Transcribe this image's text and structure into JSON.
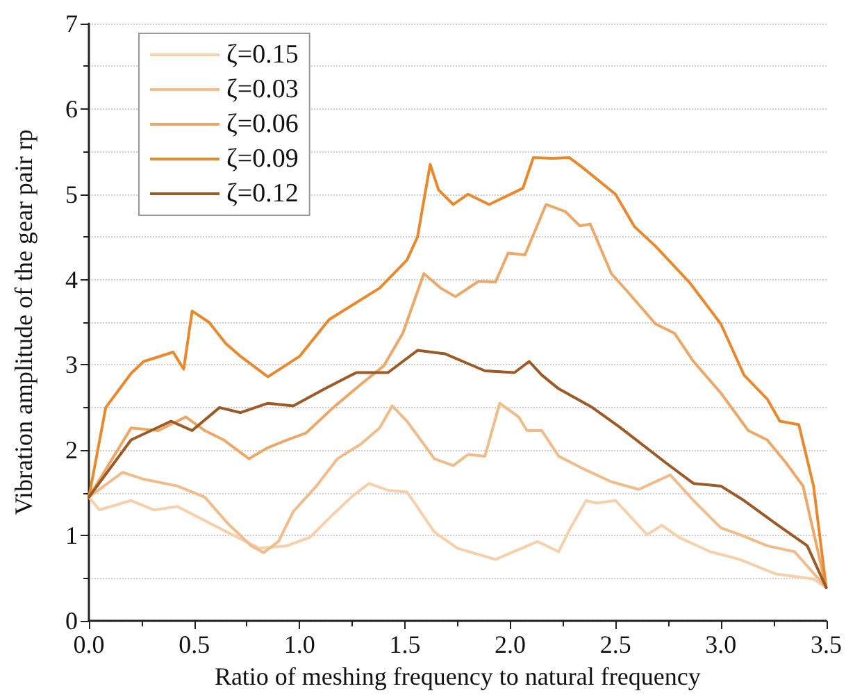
{
  "chart_data": {
    "type": "line",
    "xlabel": "Ratio of meshing frequency to natural frequency",
    "ylabel": "Vibration amplitude of the gear pair rp",
    "xlim": [
      0,
      3.5
    ],
    "xticks": [
      {
        "value": 0,
        "label": "0.0"
      },
      {
        "value": 0.5,
        "label": "0.5"
      },
      {
        "value": 1,
        "label": "1.0"
      },
      {
        "value": 1.5,
        "label": "1.5"
      },
      {
        "value": 2,
        "label": "2.0"
      },
      {
        "value": 2.5,
        "label": "2.5"
      },
      {
        "value": 3,
        "label": "3.0"
      },
      {
        "value": 3.5,
        "label": "3.5"
      }
    ],
    "ylim": [
      0,
      7
    ],
    "yticks": [
      0,
      1,
      2,
      3,
      4,
      5,
      6,
      7
    ],
    "grid": "y",
    "legend": "top left",
    "marker": "none",
    "line_style": "solid",
    "series": [
      {
        "name": "ζ=0.15",
        "color": "#f5d0ab",
        "x": [
          0,
          0.05,
          0.2,
          0.31,
          0.42,
          0.53,
          0.64,
          0.72,
          0.81,
          0.94,
          1.05,
          1.16,
          1.25,
          1.33,
          1.42,
          1.51,
          1.64,
          1.75,
          1.93,
          2.13,
          2.23,
          2.28,
          2.36,
          2.41,
          2.5,
          2.56,
          2.65,
          2.72,
          2.8,
          2.95,
          3.09,
          3.26,
          3.44,
          3.5
        ],
        "values": [
          1.45,
          1.3,
          1.41,
          1.3,
          1.34,
          1.2,
          1.06,
          0.96,
          0.85,
          0.88,
          0.98,
          1.25,
          1.46,
          1.61,
          1.53,
          1.51,
          1.04,
          0.85,
          0.72,
          0.93,
          0.81,
          1.06,
          1.41,
          1.38,
          1.41,
          1.25,
          1.01,
          1.12,
          0.98,
          0.81,
          0.72,
          0.55,
          0.49,
          0.39
        ]
      },
      {
        "name": "ζ=0.03",
        "color": "#efbc8a",
        "x": [
          0,
          0.16,
          0.26,
          0.42,
          0.55,
          0.66,
          0.77,
          0.83,
          0.9,
          0.97,
          1.08,
          1.18,
          1.29,
          1.38,
          1.44,
          1.51,
          1.64,
          1.73,
          1.8,
          1.88,
          1.95,
          2.04,
          2.08,
          2.15,
          2.23,
          2.34,
          2.48,
          2.61,
          2.76,
          2.87,
          3.0,
          3.09,
          3.22,
          3.35,
          3.5
        ],
        "values": [
          1.45,
          1.74,
          1.66,
          1.58,
          1.45,
          1.14,
          0.88,
          0.8,
          0.93,
          1.28,
          1.58,
          1.9,
          2.07,
          2.26,
          2.52,
          2.34,
          1.9,
          1.82,
          1.95,
          1.93,
          2.55,
          2.39,
          2.23,
          2.23,
          1.93,
          1.79,
          1.63,
          1.54,
          1.71,
          1.41,
          1.09,
          1.01,
          0.88,
          0.81,
          0.39
        ]
      },
      {
        "name": "ζ=0.06",
        "color": "#eca868",
        "x": [
          0,
          0.2,
          0.33,
          0.46,
          0.55,
          0.64,
          0.76,
          0.85,
          0.94,
          1.03,
          1.16,
          1.29,
          1.4,
          1.49,
          1.59,
          1.67,
          1.74,
          1.85,
          1.93,
          1.99,
          2.07,
          2.17,
          2.26,
          2.33,
          2.38,
          2.48,
          2.56,
          2.69,
          2.78,
          2.87,
          3.0,
          3.13,
          3.22,
          3.31,
          3.39,
          3.5
        ],
        "values": [
          1.45,
          2.26,
          2.23,
          2.39,
          2.23,
          2.12,
          1.9,
          2.03,
          2.12,
          2.2,
          2.5,
          2.77,
          2.99,
          3.37,
          4.07,
          3.9,
          3.8,
          3.98,
          3.97,
          4.31,
          4.29,
          4.88,
          4.8,
          4.63,
          4.65,
          4.07,
          3.85,
          3.48,
          3.37,
          3.04,
          2.67,
          2.23,
          2.12,
          1.85,
          1.58,
          0.39
        ]
      },
      {
        "name": "ζ=0.09",
        "color": "#e8892e",
        "x": [
          0,
          0.08,
          0.2,
          0.26,
          0.4,
          0.45,
          0.49,
          0.57,
          0.65,
          0.72,
          0.85,
          1.0,
          1.14,
          1.38,
          1.51,
          1.56,
          1.62,
          1.66,
          1.73,
          1.8,
          1.9,
          2.06,
          2.11,
          2.2,
          2.28,
          2.34,
          2.5,
          2.59,
          2.69,
          2.85,
          3.0,
          3.11,
          3.22,
          3.28,
          3.37,
          3.44,
          3.5
        ],
        "values": [
          1.45,
          2.5,
          2.9,
          3.04,
          3.15,
          2.95,
          3.63,
          3.5,
          3.25,
          3.1,
          2.86,
          3.1,
          3.53,
          3.9,
          4.23,
          4.5,
          5.35,
          5.05,
          4.88,
          5.0,
          4.88,
          5.07,
          5.43,
          5.42,
          5.43,
          5.32,
          5.0,
          4.62,
          4.39,
          3.97,
          3.48,
          2.88,
          2.6,
          2.34,
          2.3,
          1.58,
          0.39
        ]
      },
      {
        "name": "ζ=0.12",
        "color": "#9b5a26",
        "x": [
          0,
          0.2,
          0.39,
          0.49,
          0.62,
          0.72,
          0.85,
          0.97,
          1.12,
          1.27,
          1.42,
          1.56,
          1.69,
          1.88,
          2.02,
          2.09,
          2.15,
          2.23,
          2.39,
          2.52,
          2.74,
          2.87,
          3.0,
          3.11,
          3.26,
          3.41,
          3.5
        ],
        "values": [
          1.45,
          2.12,
          2.34,
          2.23,
          2.5,
          2.44,
          2.55,
          2.52,
          2.72,
          2.91,
          2.91,
          3.17,
          3.13,
          2.93,
          2.91,
          3.04,
          2.88,
          2.72,
          2.5,
          2.27,
          1.85,
          1.61,
          1.58,
          1.41,
          1.14,
          0.88,
          0.39
        ]
      }
    ]
  }
}
